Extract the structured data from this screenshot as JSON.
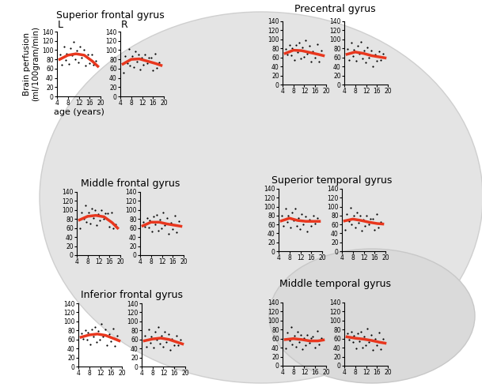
{
  "chart_data": [
    {
      "type": "scatter",
      "title": "Superior frontal gyrus",
      "annotation": "L",
      "x_label": "age (years)",
      "y_label": "Brain perfusion\n(ml/100gram/min)",
      "xlim": [
        4,
        20
      ],
      "xticks": [
        4,
        8,
        12,
        16,
        20
      ],
      "ylim": [
        0,
        140
      ],
      "yticks": [
        0,
        20,
        40,
        60,
        80,
        100,
        120,
        140
      ],
      "series": [
        {
          "type": "scatter",
          "color": "#000000",
          "marker": "dot",
          "x": [
            5.2,
            5.8,
            6.5,
            7.1,
            7.6,
            8.3,
            8.9,
            9.4,
            10.1,
            10.7,
            11.2,
            11.9,
            12.5,
            13.1,
            13.8,
            14.4,
            15.2,
            15.9,
            16.7,
            17.5,
            18.3
          ],
          "values": [
            91,
            68,
            107,
            79,
            93,
            70,
            105,
            88,
            117,
            80,
            99,
            73,
            107,
            84,
            100,
            66,
            90,
            72,
            91,
            68,
            76
          ]
        },
        {
          "type": "line",
          "color": "#e8371e",
          "x": [
            5,
            8,
            11,
            14,
            17,
            19
          ],
          "values": [
            80,
            89,
            92,
            89,
            76,
            65
          ]
        }
      ]
    },
    {
      "type": "scatter",
      "annotation": "R",
      "xlim": [
        4,
        20
      ],
      "xticks": [
        4,
        8,
        12,
        16,
        20
      ],
      "ylim": [
        0,
        140
      ],
      "yticks": [
        0,
        20,
        40,
        60,
        80,
        100,
        120,
        140
      ],
      "series": [
        {
          "type": "scatter",
          "color": "#000000",
          "marker": "dot",
          "x": [
            5.2,
            5.8,
            6.5,
            7.1,
            7.6,
            8.3,
            8.9,
            9.4,
            10.1,
            10.7,
            11.2,
            11.9,
            12.5,
            13.1,
            13.8,
            14.4,
            15.2,
            15.9,
            16.7,
            17.5,
            18.3
          ],
          "values": [
            51,
            87,
            72,
            102,
            67,
            87,
            63,
            98,
            75,
            91,
            58,
            83,
            68,
            90,
            71,
            83,
            84,
            57,
            93,
            61,
            73
          ]
        },
        {
          "type": "line",
          "color": "#e8371e",
          "x": [
            5,
            8,
            11,
            14,
            17,
            19
          ],
          "values": [
            70,
            80,
            81,
            76,
            71,
            67
          ]
        }
      ]
    },
    {
      "type": "scatter",
      "title": "Precentral gyrus",
      "xlim": [
        4,
        20
      ],
      "xticks": [
        4,
        8,
        12,
        16,
        20
      ],
      "ylim": [
        0,
        140
      ],
      "yticks": [
        0,
        20,
        40,
        60,
        80,
        100,
        120,
        140
      ],
      "series": [
        {
          "type": "scatter",
          "color": "#000000",
          "marker": "dot",
          "x": [
            5.2,
            5.8,
            6.5,
            7.1,
            7.6,
            8.3,
            8.9,
            9.4,
            10.1,
            10.7,
            11.2,
            11.9,
            12.5,
            13.1,
            13.8,
            14.4,
            15.2,
            15.9,
            16.7,
            17.5,
            18.3
          ],
          "values": [
            78,
            67,
            87,
            65,
            80,
            55,
            88,
            71,
            92,
            57,
            82,
            62,
            98,
            69,
            85,
            50,
            74,
            60,
            89,
            51,
            75
          ]
        },
        {
          "type": "line",
          "color": "#e8371e",
          "x": [
            5,
            8,
            11,
            14,
            17,
            19
          ],
          "values": [
            69,
            76,
            75,
            71,
            67,
            64
          ]
        }
      ]
    },
    {
      "type": "scatter",
      "xlim": [
        4,
        20
      ],
      "xticks": [
        4,
        8,
        12,
        16,
        20
      ],
      "ylim": [
        0,
        140
      ],
      "yticks": [
        0,
        20,
        40,
        60,
        80,
        100,
        120,
        140
      ],
      "series": [
        {
          "type": "scatter",
          "color": "#000000",
          "marker": "dot",
          "x": [
            5.2,
            5.8,
            6.5,
            7.1,
            7.6,
            8.3,
            8.9,
            9.4,
            10.1,
            10.7,
            11.2,
            11.9,
            12.5,
            13.1,
            13.8,
            14.4,
            15.2,
            15.9,
            16.7,
            17.5,
            18.3
          ],
          "values": [
            78,
            54,
            92,
            63,
            77,
            52,
            86,
            68,
            95,
            57,
            75,
            49,
            82,
            59,
            75,
            41,
            66,
            52,
            74,
            55,
            68
          ]
        },
        {
          "type": "line",
          "color": "#e8371e",
          "x": [
            5,
            8,
            11,
            14,
            17,
            19
          ],
          "values": [
            67,
            72,
            69,
            64,
            61,
            59
          ]
        }
      ]
    },
    {
      "type": "scatter",
      "title": "Middle frontal gyrus",
      "xlim": [
        4,
        20
      ],
      "xticks": [
        4,
        8,
        12,
        16,
        20
      ],
      "ylim": [
        0,
        140
      ],
      "yticks": [
        0,
        20,
        40,
        60,
        80,
        100,
        120,
        140
      ],
      "series": [
        {
          "type": "scatter",
          "color": "#000000",
          "marker": "dot",
          "x": [
            5.2,
            5.8,
            6.5,
            7.1,
            7.6,
            8.3,
            8.9,
            9.4,
            10.1,
            10.7,
            11.2,
            11.9,
            12.5,
            13.1,
            13.8,
            14.4,
            15.2,
            15.9,
            16.7,
            17.5,
            18.3
          ],
          "values": [
            59,
            95,
            80,
            110,
            74,
            94,
            70,
            104,
            82,
            99,
            66,
            91,
            77,
            99,
            80,
            92,
            92,
            63,
            95,
            60,
            68
          ]
        },
        {
          "type": "line",
          "color": "#e8371e",
          "x": [
            5,
            8,
            11,
            14,
            17,
            19
          ],
          "values": [
            78,
            86,
            88,
            85,
            72,
            60
          ]
        }
      ]
    },
    {
      "type": "scatter",
      "xlim": [
        4,
        20
      ],
      "xticks": [
        4,
        8,
        12,
        16,
        20
      ],
      "ylim": [
        0,
        140
      ],
      "yticks": [
        0,
        20,
        40,
        60,
        80,
        100,
        120,
        140
      ],
      "series": [
        {
          "type": "scatter",
          "color": "#000000",
          "marker": "dot",
          "x": [
            5.2,
            5.8,
            6.5,
            7.1,
            7.6,
            8.3,
            8.9,
            9.4,
            10.1,
            10.7,
            11.2,
            11.9,
            12.5,
            13.1,
            13.8,
            14.4,
            15.2,
            15.9,
            16.7,
            17.5,
            18.3
          ],
          "values": [
            74,
            63,
            83,
            62,
            77,
            52,
            86,
            69,
            90,
            55,
            79,
            59,
            95,
            67,
            83,
            48,
            72,
            58,
            88,
            50,
            75
          ]
        },
        {
          "type": "line",
          "color": "#e8371e",
          "x": [
            5,
            8,
            11,
            14,
            17,
            19
          ],
          "values": [
            65,
            73,
            73,
            69,
            66,
            64
          ]
        }
      ]
    },
    {
      "type": "scatter",
      "title": "Superior temporal gyrus",
      "xlim": [
        4,
        20
      ],
      "xticks": [
        4,
        8,
        12,
        16,
        20
      ],
      "ylim": [
        0,
        140
      ],
      "yticks": [
        0,
        20,
        40,
        60,
        80,
        100,
        120,
        140
      ],
      "series": [
        {
          "type": "scatter",
          "color": "#000000",
          "marker": "dot",
          "x": [
            5.2,
            5.8,
            6.5,
            7.1,
            7.6,
            8.3,
            8.9,
            9.4,
            10.1,
            10.7,
            11.2,
            11.9,
            12.5,
            13.1,
            13.8,
            14.4,
            15.2,
            15.9,
            16.7,
            17.5,
            18.3
          ],
          "values": [
            79,
            56,
            95,
            66,
            79,
            54,
            87,
            69,
            95,
            57,
            75,
            50,
            83,
            61,
            78,
            45,
            71,
            57,
            80,
            62,
            75
          ]
        },
        {
          "type": "line",
          "color": "#e8371e",
          "x": [
            5,
            8,
            11,
            14,
            17,
            19
          ],
          "values": [
            68,
            74,
            69,
            67,
            67,
            67
          ]
        }
      ]
    },
    {
      "type": "scatter",
      "xlim": [
        4,
        20
      ],
      "xticks": [
        4,
        8,
        12,
        16,
        20
      ],
      "ylim": [
        0,
        140
      ],
      "yticks": [
        0,
        20,
        40,
        60,
        80,
        100,
        120,
        140
      ],
      "series": [
        {
          "type": "scatter",
          "color": "#000000",
          "marker": "dot",
          "x": [
            5.2,
            5.8,
            6.5,
            7.1,
            7.6,
            8.3,
            8.9,
            9.4,
            10.1,
            10.7,
            11.2,
            11.9,
            12.5,
            13.1,
            13.8,
            14.4,
            15.2,
            15.9,
            16.7,
            17.5,
            18.3
          ],
          "values": [
            48,
            84,
            68,
            97,
            60,
            79,
            54,
            87,
            64,
            80,
            46,
            71,
            56,
            79,
            60,
            72,
            73,
            48,
            84,
            54,
            66
          ]
        },
        {
          "type": "line",
          "color": "#e8371e",
          "x": [
            5,
            8,
            11,
            14,
            17,
            19
          ],
          "values": [
            68,
            72,
            69,
            65,
            62,
            61
          ]
        }
      ]
    },
    {
      "type": "scatter",
      "title": "Inferior frontal gyrus",
      "xlim": [
        4,
        20
      ],
      "xticks": [
        4,
        8,
        12,
        16,
        20
      ],
      "ylim": [
        0,
        140
      ],
      "yticks": [
        0,
        20,
        40,
        60,
        80,
        100,
        120,
        140
      ],
      "series": [
        {
          "type": "scatter",
          "color": "#000000",
          "marker": "dot",
          "x": [
            5.2,
            5.8,
            6.5,
            7.1,
            7.6,
            8.3,
            8.9,
            9.4,
            10.1,
            10.7,
            11.2,
            11.9,
            12.5,
            13.1,
            13.8,
            14.4,
            15.2,
            15.9,
            16.7,
            17.5,
            18.3
          ],
          "values": [
            74,
            62,
            81,
            60,
            75,
            49,
            83,
            66,
            88,
            54,
            78,
            59,
            95,
            66,
            82,
            47,
            71,
            56,
            84,
            45,
            68
          ]
        },
        {
          "type": "line",
          "color": "#e8371e",
          "x": [
            5,
            8,
            11,
            14,
            17,
            19
          ],
          "values": [
            65,
            70,
            72,
            69,
            62,
            57
          ]
        }
      ]
    },
    {
      "type": "scatter",
      "xlim": [
        4,
        20
      ],
      "xticks": [
        4,
        8,
        12,
        16,
        20
      ],
      "ylim": [
        0,
        140
      ],
      "yticks": [
        0,
        20,
        40,
        60,
        80,
        100,
        120,
        140
      ],
      "series": [
        {
          "type": "scatter",
          "color": "#000000",
          "marker": "dot",
          "x": [
            5.2,
            5.8,
            6.5,
            7.1,
            7.6,
            8.3,
            8.9,
            9.4,
            10.1,
            10.7,
            11.2,
            11.9,
            12.5,
            13.1,
            13.8,
            14.4,
            15.2,
            15.9,
            16.7,
            17.5,
            18.3
          ],
          "values": [
            68,
            44,
            82,
            53,
            67,
            42,
            77,
            60,
            88,
            51,
            69,
            44,
            77,
            54,
            71,
            37,
            62,
            47,
            68,
            48,
            59
          ]
        },
        {
          "type": "line",
          "color": "#e8371e",
          "x": [
            5,
            8,
            11,
            14,
            17,
            19
          ],
          "values": [
            57,
            61,
            63,
            60,
            54,
            50
          ]
        }
      ]
    },
    {
      "type": "scatter",
      "title": "Middle temporal gyrus",
      "xlim": [
        4,
        20
      ],
      "xticks": [
        4,
        8,
        12,
        16,
        20
      ],
      "ylim": [
        0,
        140
      ],
      "yticks": [
        0,
        20,
        40,
        60,
        80,
        100,
        120,
        140
      ],
      "series": [
        {
          "type": "scatter",
          "color": "#000000",
          "marker": "dot",
          "x": [
            5.2,
            5.8,
            6.5,
            7.1,
            7.6,
            8.3,
            8.9,
            9.4,
            10.1,
            10.7,
            11.2,
            11.9,
            12.5,
            13.1,
            13.8,
            14.4,
            15.2,
            15.9,
            16.7,
            17.5,
            18.3
          ],
          "values": [
            38,
            73,
            56,
            85,
            48,
            67,
            42,
            76,
            53,
            69,
            36,
            61,
            46,
            68,
            50,
            62,
            64,
            40,
            77,
            48,
            61
          ]
        },
        {
          "type": "line",
          "color": "#e8371e",
          "x": [
            5,
            8,
            11,
            14,
            17,
            19
          ],
          "values": [
            58,
            60,
            58,
            55,
            55,
            57
          ]
        }
      ]
    },
    {
      "type": "scatter",
      "xlim": [
        4,
        20
      ],
      "xticks": [
        4,
        8,
        12,
        16,
        20
      ],
      "ylim": [
        0,
        140
      ],
      "yticks": [
        0,
        20,
        40,
        60,
        80,
        100,
        120,
        140
      ],
      "series": [
        {
          "type": "scatter",
          "color": "#000000",
          "marker": "dot",
          "x": [
            5.2,
            5.8,
            6.5,
            7.1,
            7.6,
            8.3,
            8.9,
            9.4,
            10.1,
            10.7,
            11.2,
            11.9,
            12.5,
            13.1,
            13.8,
            14.4,
            15.2,
            15.9,
            16.7,
            17.5,
            18.3
          ],
          "values": [
            72,
            58,
            76,
            52,
            66,
            39,
            72,
            54,
            76,
            41,
            65,
            46,
            82,
            53,
            69,
            35,
            59,
            45,
            74,
            36,
            60
          ]
        },
        {
          "type": "line",
          "color": "#e8371e",
          "x": [
            5,
            8,
            11,
            14,
            17,
            19
          ],
          "values": [
            64,
            61,
            59,
            56,
            52,
            50
          ]
        }
      ]
    }
  ]
}
